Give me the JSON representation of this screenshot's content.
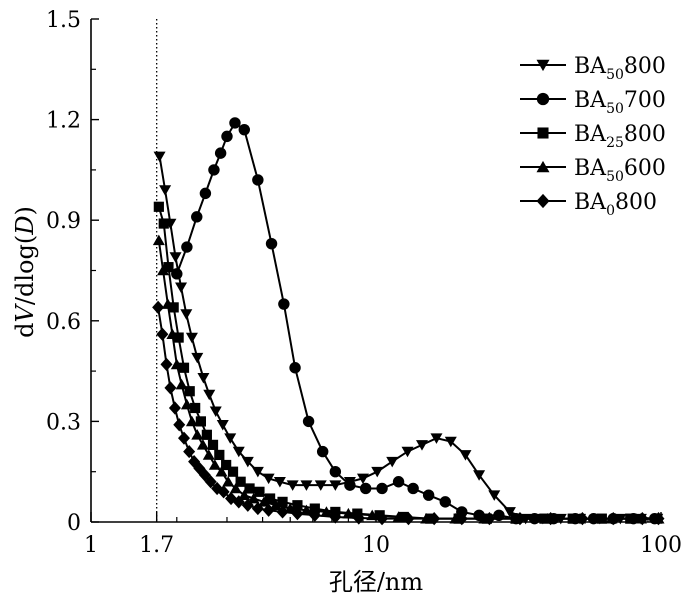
{
  "chart_data": {
    "type": "line",
    "x_scale": "log",
    "xlim": [
      1,
      100
    ],
    "ylim": [
      0,
      1.5
    ],
    "grid": false,
    "legend_position": "top-right",
    "xlabel": "孔径/nm",
    "ylabel": {
      "parts": [
        {
          "t": "d",
          "i": false
        },
        {
          "t": "V",
          "i": true
        },
        {
          "t": "/dlog(",
          "i": false
        },
        {
          "t": "D",
          "i": true
        },
        {
          "t": ")",
          "i": false
        }
      ]
    },
    "x_ticks": [
      {
        "value": 1,
        "label": "1"
      },
      {
        "value": 1.7,
        "label": "1.7"
      },
      {
        "value": 10,
        "label": "10"
      },
      {
        "value": 100,
        "label": "100"
      }
    ],
    "y_ticks": [
      {
        "value": 0,
        "label": "0"
      },
      {
        "value": 0.3,
        "label": "0.3"
      },
      {
        "value": 0.6,
        "label": "0.6"
      },
      {
        "value": 0.9,
        "label": "0.9"
      },
      {
        "value": 1.2,
        "label": "1.2"
      },
      {
        "value": 1.5,
        "label": "1.5"
      }
    ],
    "reference_line": {
      "x": 1.7,
      "style": "dotted"
    },
    "series": [
      {
        "name": "BA50800",
        "label_main": "BA",
        "label_sub": "50",
        "label_tail": "800",
        "marker": "triangle-down",
        "x": [
          1.74,
          1.82,
          1.9,
          1.98,
          2.07,
          2.16,
          2.26,
          2.36,
          2.48,
          2.6,
          2.74,
          2.9,
          3.08,
          3.3,
          3.55,
          3.85,
          4.2,
          4.6,
          5.1,
          5.7,
          6.4,
          7.2,
          8.1,
          9.0,
          10.1,
          11.4,
          12.9,
          14.5,
          16.3,
          18.3,
          20.6,
          23.0,
          26.0,
          29.5,
          33.5,
          38.5,
          44.5,
          52.0,
          61.0,
          72.0,
          85.0,
          97.0
        ],
        "y": [
          1.09,
          0.99,
          0.89,
          0.79,
          0.7,
          0.62,
          0.55,
          0.49,
          0.43,
          0.38,
          0.33,
          0.29,
          0.25,
          0.21,
          0.18,
          0.15,
          0.13,
          0.12,
          0.11,
          0.11,
          0.11,
          0.11,
          0.12,
          0.13,
          0.15,
          0.18,
          0.21,
          0.23,
          0.25,
          0.24,
          0.2,
          0.14,
          0.08,
          0.03,
          0.01,
          0.01,
          0.01,
          0.01,
          0.01,
          0.01,
          0.01,
          0.01
        ]
      },
      {
        "name": "BA50700",
        "label_main": "BA",
        "label_sub": "50",
        "label_tail": "700",
        "marker": "circle",
        "x": [
          2.0,
          2.17,
          2.35,
          2.52,
          2.7,
          2.85,
          3.0,
          3.2,
          3.45,
          3.85,
          4.3,
          4.75,
          5.2,
          5.8,
          6.5,
          7.2,
          8.1,
          9.2,
          10.5,
          12.0,
          13.5,
          15.3,
          17.5,
          20.0,
          23.0,
          27.0,
          31.0,
          36.0,
          42.0,
          50.0,
          58.0,
          68.0,
          80.0,
          95.0
        ],
        "y": [
          0.74,
          0.82,
          0.91,
          0.98,
          1.05,
          1.1,
          1.15,
          1.19,
          1.17,
          1.02,
          0.83,
          0.65,
          0.46,
          0.3,
          0.21,
          0.15,
          0.11,
          0.1,
          0.1,
          0.12,
          0.1,
          0.08,
          0.06,
          0.03,
          0.02,
          0.02,
          0.01,
          0.01,
          0.01,
          0.01,
          0.01,
          0.01,
          0.01,
          0.01
        ]
      },
      {
        "name": "BA25800",
        "label_main": "BA",
        "label_sub": "25",
        "label_tail": "800",
        "marker": "square",
        "x": [
          1.73,
          1.8,
          1.87,
          1.95,
          2.03,
          2.12,
          2.22,
          2.32,
          2.43,
          2.55,
          2.68,
          2.82,
          2.98,
          3.15,
          3.35,
          3.6,
          3.9,
          4.25,
          4.7,
          5.3,
          6.1,
          7.2,
          8.6,
          10.3,
          12.5,
          15.5,
          19.5,
          24.5,
          31.0,
          39.0,
          49.0,
          62.0,
          78.0,
          97.0
        ],
        "y": [
          0.94,
          0.89,
          0.76,
          0.64,
          0.55,
          0.46,
          0.39,
          0.34,
          0.3,
          0.26,
          0.23,
          0.2,
          0.17,
          0.15,
          0.12,
          0.1,
          0.09,
          0.07,
          0.06,
          0.05,
          0.04,
          0.03,
          0.025,
          0.02,
          0.015,
          0.01,
          0.01,
          0.01,
          0.01,
          0.01,
          0.01,
          0.01,
          0.01,
          0.01
        ]
      },
      {
        "name": "BA50600",
        "label_main": "BA",
        "label_sub": "50",
        "label_tail": "600",
        "marker": "triangle-up",
        "x": [
          1.73,
          1.79,
          1.86,
          1.93,
          2.0,
          2.08,
          2.17,
          2.26,
          2.36,
          2.47,
          2.59,
          2.72,
          2.87,
          3.03,
          3.22,
          3.45,
          3.72,
          4.05,
          4.45,
          5.0,
          5.7,
          6.7,
          8.0,
          9.7,
          12.0,
          15.0,
          19.0,
          24.0,
          31.0,
          40.0,
          52.0,
          67.0,
          85.0,
          98.0
        ],
        "y": [
          0.84,
          0.75,
          0.65,
          0.56,
          0.47,
          0.41,
          0.35,
          0.3,
          0.26,
          0.23,
          0.2,
          0.17,
          0.15,
          0.12,
          0.1,
          0.08,
          0.07,
          0.06,
          0.05,
          0.04,
          0.035,
          0.03,
          0.025,
          0.02,
          0.015,
          0.01,
          0.01,
          0.01,
          0.01,
          0.01,
          0.01,
          0.01,
          0.01,
          0.01
        ]
      },
      {
        "name": "BA0800",
        "label_main": "BA",
        "label_sub": "0",
        "label_tail": "800",
        "marker": "diamond",
        "x": [
          1.72,
          1.78,
          1.84,
          1.9,
          1.97,
          2.04,
          2.12,
          2.21,
          2.3,
          2.4,
          2.51,
          2.63,
          2.77,
          2.92,
          3.1,
          3.3,
          3.55,
          3.85,
          4.2,
          4.7,
          5.3,
          6.1,
          7.2,
          8.7,
          10.5,
          13.0,
          16.0,
          20.0,
          25.0,
          32.0,
          41.0,
          53.0,
          68.0,
          86.0,
          98.0
        ],
        "y": [
          0.64,
          0.56,
          0.47,
          0.4,
          0.34,
          0.29,
          0.25,
          0.21,
          0.18,
          0.16,
          0.14,
          0.12,
          0.1,
          0.09,
          0.07,
          0.06,
          0.05,
          0.04,
          0.035,
          0.03,
          0.025,
          0.02,
          0.015,
          0.012,
          0.01,
          0.01,
          0.01,
          0.01,
          0.01,
          0.01,
          0.01,
          0.01,
          0.01,
          0.01,
          0.01
        ]
      }
    ]
  }
}
